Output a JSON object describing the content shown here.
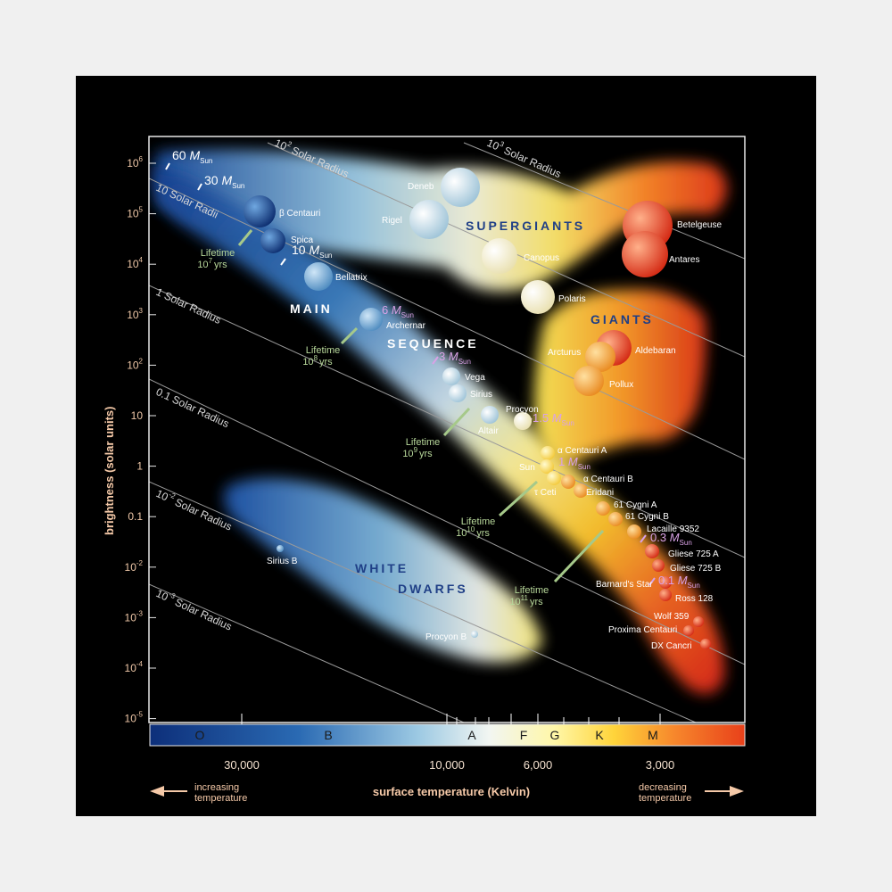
{
  "y_axis": {
    "title": "brightness (solar units)",
    "ticks": [
      {
        "base": "10",
        "exp": "6"
      },
      {
        "base": "10",
        "exp": "5"
      },
      {
        "base": "10",
        "exp": "4"
      },
      {
        "base": "10",
        "exp": "3"
      },
      {
        "base": "10",
        "exp": "2"
      },
      {
        "base": "10",
        "exp": ""
      },
      {
        "base": "1",
        "exp": ""
      },
      {
        "base": "0.1",
        "exp": ""
      },
      {
        "base": "10",
        "exp": "-2"
      },
      {
        "base": "10",
        "exp": "-3"
      },
      {
        "base": "10",
        "exp": "-4"
      },
      {
        "base": "10",
        "exp": "-5"
      }
    ]
  },
  "x_axis": {
    "title": "surface temperature (Kelvin)",
    "ticks": [
      "30,000",
      "10,000",
      "6,000",
      "3,000"
    ],
    "left_note": [
      "increasing",
      "temperature"
    ],
    "right_note": [
      "decreasing",
      "temperature"
    ]
  },
  "spectral_classes": [
    "O",
    "B",
    "A",
    "F",
    "G",
    "K",
    "M"
  ],
  "regions": {
    "supergiants": "SUPERGIANTS",
    "giants": "GIANTS",
    "main": "MAIN",
    "sequence": "SEQUENCE",
    "white": "WHITE",
    "dwarfs": "DWARFS"
  },
  "radius_lines": [
    {
      "base": "10",
      "exp": "3",
      "text": "Solar Radius"
    },
    {
      "base": "10",
      "exp": "2",
      "text": "Solar Radius"
    },
    {
      "base": "10 Solar Radii",
      "exp": "",
      "text": ""
    },
    {
      "base": "1 Solar Radius",
      "exp": "",
      "text": ""
    },
    {
      "base": "0.1 Solar Radius",
      "exp": "",
      "text": ""
    },
    {
      "base": "10",
      "exp": "-2",
      "text": "Solar Radius"
    },
    {
      "base": "10",
      "exp": "-3",
      "text": "Solar Radius"
    }
  ],
  "stars": [
    "β Centauri",
    "Spica",
    "Bellatrix",
    "Archernar",
    "Vega",
    "Sirius",
    "Altair",
    "Procyon",
    "α Centauri A",
    "Sun",
    "α Centauri B",
    "τ Ceti",
    "Eridani",
    "61 Cygni A",
    "61 Cygni B",
    "Lacaille 9352",
    "Gliese 725 A",
    "Gliese 725 B",
    "Barnard's Star",
    "Ross 128",
    "Wolf 359",
    "Proxima Centauri",
    "DX Cancri",
    "Sirius B",
    "Procyon B",
    "Deneb",
    "Rigel",
    "Canopus",
    "Polaris",
    "Betelgeuse",
    "Antares",
    "Arcturus",
    "Aldebaran",
    "Pollux"
  ],
  "masses": [
    {
      "num": "60",
      "sub": "Sun",
      "unit": "M"
    },
    {
      "num": "30",
      "sub": "Sun",
      "unit": "M"
    },
    {
      "num": "10",
      "sub": "Sun",
      "unit": "M"
    },
    {
      "num": "6",
      "sub": "Sun",
      "unit": "M"
    },
    {
      "num": "3",
      "sub": "Sun",
      "unit": "M"
    },
    {
      "num": "1.5",
      "sub": "Sun",
      "unit": "M"
    },
    {
      "num": "1",
      "sub": "Sun",
      "unit": "M"
    },
    {
      "num": "0.3",
      "sub": "Sun",
      "unit": "M"
    },
    {
      "num": "0.1",
      "sub": "Sun",
      "unit": "M"
    }
  ],
  "lifetimes": [
    {
      "label": "Lifetime",
      "base": "10",
      "exp": "7",
      "unit": "yrs"
    },
    {
      "label": "Lifetime",
      "base": "10",
      "exp": "8",
      "unit": "yrs"
    },
    {
      "label": "Lifetime",
      "base": "10",
      "exp": "9",
      "unit": "yrs"
    },
    {
      "label": "Lifetime",
      "base": "10",
      "exp": "10",
      "unit": "yrs"
    },
    {
      "label": "Lifetime",
      "base": "10",
      "exp": "11",
      "unit": "yrs"
    }
  ]
}
